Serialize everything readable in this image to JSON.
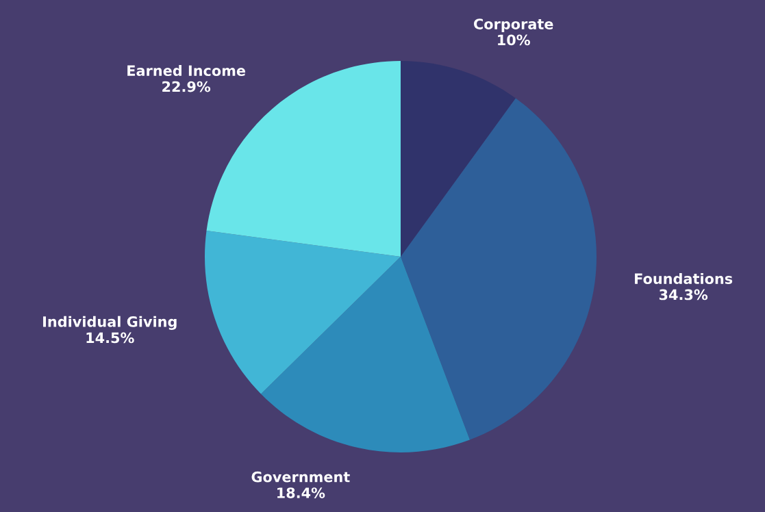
{
  "chart_data": {
    "type": "pie",
    "categories": [
      "Corporate",
      "Foundations",
      "Government",
      "Individual Giving",
      "Earned Income"
    ],
    "values": [
      10,
      34.3,
      18.4,
      14.5,
      22.9
    ],
    "colors": [
      "#30336b",
      "#2e5f99",
      "#2d8bba",
      "#41b6d6",
      "#69e5e9"
    ],
    "value_labels": [
      "10%",
      "34.3%",
      "18.4%",
      "14.5%",
      "22.9%"
    ]
  }
}
